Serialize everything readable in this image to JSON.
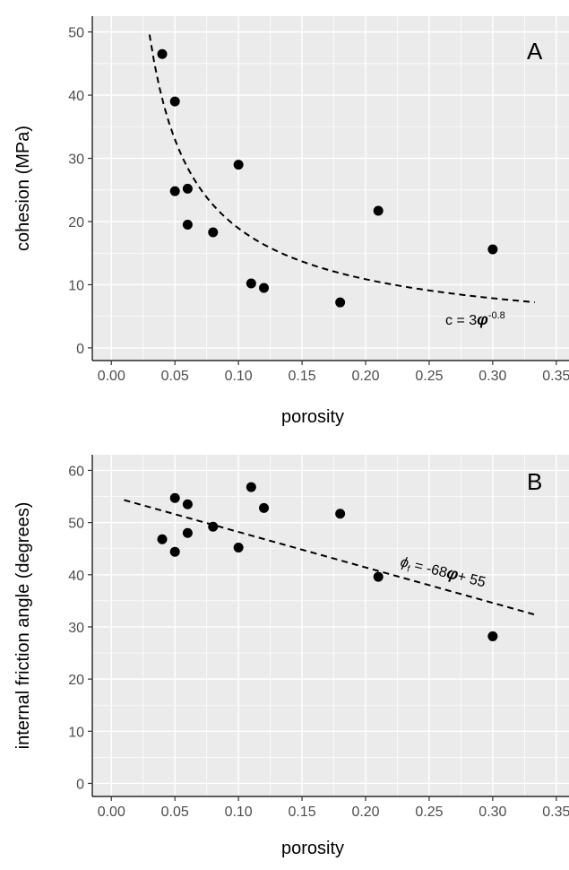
{
  "chart_data": [
    {
      "type": "scatter",
      "panel_label": "A",
      "xlabel": "porosity",
      "ylabel": "cohesion (MPa)",
      "xlim": [
        -0.015,
        0.36
      ],
      "ylim": [
        -2.0,
        52.5
      ],
      "x_ticks": [
        "0.00",
        "0.05",
        "0.10",
        "0.15",
        "0.20",
        "0.25",
        "0.30",
        "0.35"
      ],
      "y_ticks": [
        "0",
        "10",
        "20",
        "30",
        "40",
        "50"
      ],
      "points": [
        {
          "x": 0.04,
          "y": 46.5
        },
        {
          "x": 0.05,
          "y": 39.0
        },
        {
          "x": 0.05,
          "y": 24.8
        },
        {
          "x": 0.06,
          "y": 25.2
        },
        {
          "x": 0.06,
          "y": 19.5
        },
        {
          "x": 0.08,
          "y": 18.3
        },
        {
          "x": 0.1,
          "y": 29.0
        },
        {
          "x": 0.11,
          "y": 10.2
        },
        {
          "x": 0.12,
          "y": 9.5
        },
        {
          "x": 0.18,
          "y": 7.2
        },
        {
          "x": 0.21,
          "y": 21.7
        },
        {
          "x": 0.3,
          "y": 15.6
        }
      ],
      "fit": {
        "form": "power",
        "equation_parts": [
          "c = 3",
          "φ",
          "-0.8"
        ],
        "a": 3,
        "b": -0.8,
        "x_range": [
          0.03,
          0.333
        ]
      },
      "grid": true,
      "background": "#ebebeb"
    },
    {
      "type": "scatter",
      "panel_label": "B",
      "xlabel": "porosity",
      "ylabel": "internal friction angle (degrees)",
      "xlim": [
        -0.015,
        0.36
      ],
      "ylim": [
        -2.5,
        63.0
      ],
      "x_ticks": [
        "0.00",
        "0.05",
        "0.10",
        "0.15",
        "0.20",
        "0.25",
        "0.30",
        "0.35"
      ],
      "y_ticks": [
        "0",
        "10",
        "20",
        "30",
        "40",
        "50",
        "60"
      ],
      "points": [
        {
          "x": 0.04,
          "y": 46.8
        },
        {
          "x": 0.05,
          "y": 54.7
        },
        {
          "x": 0.05,
          "y": 44.4
        },
        {
          "x": 0.06,
          "y": 53.5
        },
        {
          "x": 0.06,
          "y": 48.0
        },
        {
          "x": 0.08,
          "y": 49.2
        },
        {
          "x": 0.1,
          "y": 45.2
        },
        {
          "x": 0.11,
          "y": 56.8
        },
        {
          "x": 0.12,
          "y": 52.8
        },
        {
          "x": 0.18,
          "y": 51.7
        },
        {
          "x": 0.21,
          "y": 39.6
        },
        {
          "x": 0.3,
          "y": 28.2
        }
      ],
      "fit": {
        "form": "linear",
        "equation_parts": [
          "ϕ",
          "f",
          " = -68",
          "φ",
          "+ 55"
        ],
        "slope": -68,
        "intercept": 55,
        "x_range": [
          0.01,
          0.333
        ]
      },
      "grid": true,
      "background": "#ebebeb"
    }
  ]
}
